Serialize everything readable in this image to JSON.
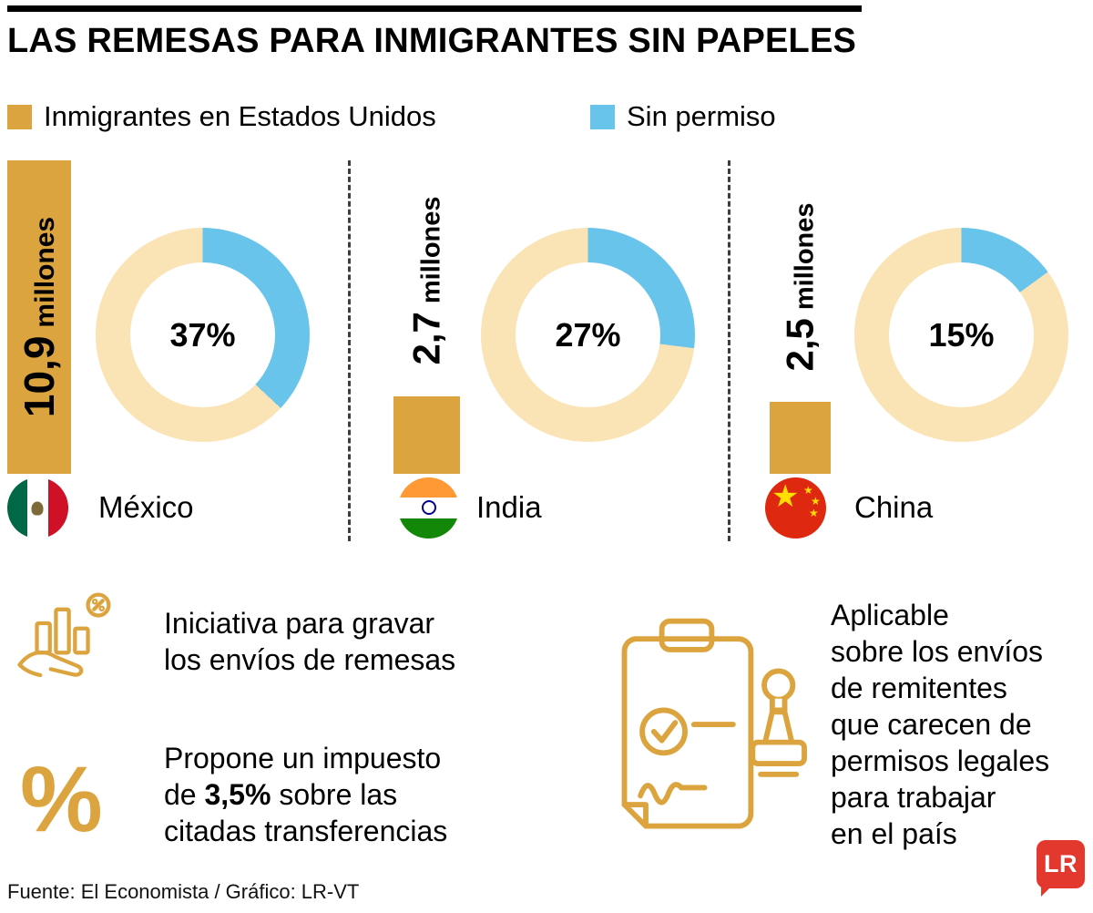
{
  "title": "LAS REMESAS PARA INMIGRANTES SIN PAPELES",
  "colors": {
    "gold": "#DCA43E",
    "cream": "#FAE4B5",
    "blue": "#69C4EC",
    "logo_red": "#E2382E"
  },
  "legend": [
    {
      "label": "Inmigrantes en Estados Unidos",
      "color": "#DCA43E"
    },
    {
      "label": "Sin permiso",
      "color": "#69C4EC"
    }
  ],
  "chart_data": {
    "type": "pie",
    "title": "LAS REMESAS PARA INMIGRANTES SIN PAPELES",
    "legend": [
      "Inmigrantes en Estados Unidos",
      "Sin permiso"
    ],
    "units": "millones",
    "countries": [
      {
        "name": "México",
        "total_label": "10,9",
        "total_millions": 10.9,
        "sin_permiso_pct": 37,
        "pct_label": "37%"
      },
      {
        "name": "India",
        "total_label": "2,7",
        "total_millions": 2.7,
        "sin_permiso_pct": 27,
        "pct_label": "27%"
      },
      {
        "name": "China",
        "total_label": "2,5",
        "total_millions": 2.5,
        "sin_permiso_pct": 15,
        "pct_label": "15%"
      }
    ]
  },
  "notes": [
    {
      "icon": "hand-chart-percent-icon",
      "lines": [
        "Iniciativa para gravar",
        "los envíos de remesas"
      ]
    },
    {
      "icon": "percent-icon",
      "line1": "Propone un impuesto",
      "line2_pre": "de ",
      "line2_bold": "3,5%",
      "line2_post": " sobre las",
      "line3": "citadas transferencias"
    },
    {
      "icon": "clipboard-stamp-icon",
      "lines": [
        "Aplicable",
        "sobre los envíos",
        "de remitentes",
        "que carecen de",
        "permisos legales",
        "para trabajar",
        "en el país"
      ]
    }
  ],
  "icons": {
    "percent_glyph": "%",
    "star_glyph": "★"
  },
  "footer": {
    "source": "Fuente: El Economista / Gráfico: LR-VT",
    "logo_text": "LR"
  }
}
